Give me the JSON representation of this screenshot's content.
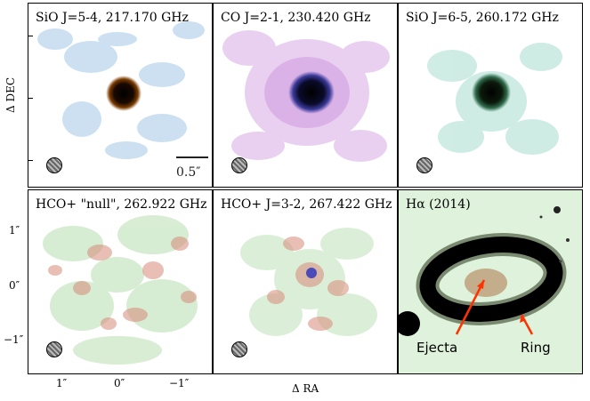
{
  "panels": [
    {
      "title": "SiO J=5-4, 217.170 GHz",
      "tint": "#6fa8dc"
    },
    {
      "title": "CO J=2-1, 230.420 GHz",
      "tint": "#c27bd6"
    },
    {
      "title": "SiO J=6-5, 260.172 GHz",
      "tint": "#5fbfa8"
    },
    {
      "title": "HCO+ \"null\", 262.922 GHz",
      "tint": "#d88a7a"
    },
    {
      "title": "HCO+ J=3-2, 267.422 GHz",
      "tint": "#d88a7a"
    },
    {
      "title": "Hα (2014)",
      "tint": "#8fcf8a"
    }
  ],
  "axes": {
    "y_label": "Δ DEC",
    "x_label": "Δ RA",
    "y_ticks": [
      "1″",
      "0″",
      "−1″"
    ],
    "x_ticks": [
      "1″",
      "0″",
      "−1″"
    ]
  },
  "scalebar_label": "0.5″",
  "annotations": {
    "ejecta": "Ejecta",
    "ring": "Ring"
  }
}
